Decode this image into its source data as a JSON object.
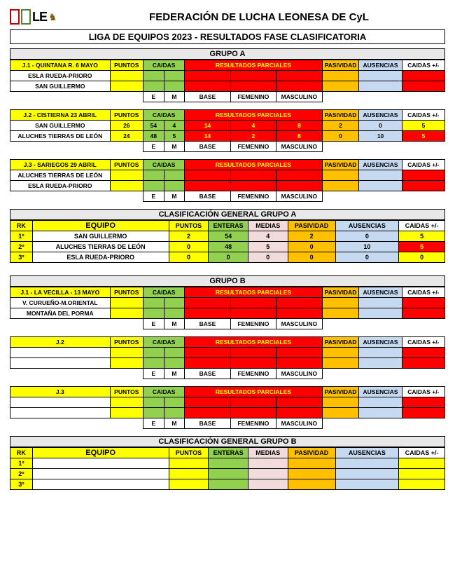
{
  "colors": {
    "yellow": "#ffff00",
    "green": "#92d050",
    "red": "#ff0000",
    "orange": "#ffc000",
    "blue": "#c5d9f1",
    "pink": "#f2dcdb",
    "grey": "#e8e8e8",
    "white": "#ffffff",
    "logo_red": "#c00000",
    "logo_green": "#548235",
    "logo_brown": "#7f6000"
  },
  "header_title": "FEDERACIÓN DE LUCHA LEONESA DE CyL",
  "subtitle": "LIGA DE EQUIPOS 2023 - RESULTADOS FASE CLASIFICATORIA",
  "labels": {
    "puntos": "PUNTOS",
    "caidas": "CAIDAS",
    "resultados": "RESULTADOS PARCIALES",
    "pasividad": "PASIVIDAD",
    "ausencias": "AUSENCIAS",
    "caidaspm": "CAIDAS +/-",
    "e": "E",
    "m": "M",
    "base": "BASE",
    "femenino": "FEMENINO",
    "masculino": "MASCULINO",
    "rk": "RK",
    "equipo": "EQUIPO",
    "enteras": "ENTERAS",
    "medias": "MEDIAS"
  },
  "groupA": {
    "title": "GRUPO A",
    "jornadas": [
      {
        "name": "J.1 - QUINTANA R. 6 MAYO",
        "rows": [
          {
            "team": "ESLA RUEDA-PRIORO",
            "puntos": "",
            "e": "",
            "m": "",
            "base": "",
            "fem": "",
            "mas": "",
            "pas": "",
            "aus": "",
            "cpm": ""
          },
          {
            "team": "SAN GUILLERMO",
            "puntos": "",
            "e": "",
            "m": "",
            "base": "",
            "fem": "",
            "mas": "",
            "pas": "",
            "aus": "",
            "cpm": ""
          }
        ]
      },
      {
        "name": "J.2 - CISTIERNA 23 ABRIL",
        "rows": [
          {
            "team": "SAN GUILLERMO",
            "puntos": "26",
            "e": "54",
            "m": "4",
            "base": "14",
            "fem": "4",
            "mas": "8",
            "pas": "2",
            "aus": "0",
            "cpm": "5",
            "cpm_bg": "yellow"
          },
          {
            "team": "ALUCHES TIERRAS DE LEÓN",
            "puntos": "24",
            "e": "48",
            "m": "5",
            "base": "14",
            "fem": "2",
            "mas": "8",
            "pas": "0",
            "aus": "10",
            "cpm": "5",
            "cpm_bg": "red"
          }
        ]
      },
      {
        "name": "J.3 - SARIEGOS 29 ABRIL",
        "rows": [
          {
            "team": "ALUCHES TIERRAS DE LEÓN",
            "puntos": "",
            "e": "",
            "m": "",
            "base": "",
            "fem": "",
            "mas": "",
            "pas": "",
            "aus": "",
            "cpm": ""
          },
          {
            "team": "ESLA RUEDA-PRIORO",
            "puntos": "",
            "e": "",
            "m": "",
            "base": "",
            "fem": "",
            "mas": "",
            "pas": "",
            "aus": "",
            "cpm": ""
          }
        ]
      }
    ],
    "clas_title": "CLASIFICACIÓN GENERAL GRUPO A",
    "clas": [
      {
        "rk": "1º",
        "equipo": "SAN GUILLERMO",
        "puntos": "2",
        "ent": "54",
        "med": "4",
        "pas": "2",
        "aus": "0",
        "cpm": "5",
        "cpm_bg": "yellow"
      },
      {
        "rk": "2º",
        "equipo": "ALUCHES TIERRAS DE LEÓN",
        "puntos": "0",
        "ent": "48",
        "med": "5",
        "pas": "0",
        "aus": "10",
        "cpm": "5",
        "cpm_bg": "red"
      },
      {
        "rk": "3º",
        "equipo": "ESLA RUEDA-PRIORO",
        "puntos": "0",
        "ent": "0",
        "med": "0",
        "pas": "0",
        "aus": "0",
        "cpm": "0",
        "cpm_bg": "yellow"
      }
    ]
  },
  "groupB": {
    "title": "GRUPO B",
    "jornadas": [
      {
        "name": "J.1 - LA VECILLA - 13 MAYO",
        "rows": [
          {
            "team": "V. CURUEÑO-M.ORIENTAL",
            "puntos": "",
            "e": "",
            "m": "",
            "base": "",
            "fem": "",
            "mas": "",
            "pas": "",
            "aus": "",
            "cpm": ""
          },
          {
            "team": "MONTAÑA DEL PORMA",
            "puntos": "",
            "e": "",
            "m": "",
            "base": "",
            "fem": "",
            "mas": "",
            "pas": "",
            "aus": "",
            "cpm": ""
          }
        ]
      },
      {
        "name": "J.2",
        "rows": [
          {
            "team": "",
            "puntos": "",
            "e": "",
            "m": "",
            "base": "",
            "fem": "",
            "mas": "",
            "pas": "",
            "aus": "",
            "cpm": ""
          },
          {
            "team": "",
            "puntos": "",
            "e": "",
            "m": "",
            "base": "",
            "fem": "",
            "mas": "",
            "pas": "",
            "aus": "",
            "cpm": ""
          }
        ]
      },
      {
        "name": "J.3",
        "rows": [
          {
            "team": "",
            "puntos": "",
            "e": "",
            "m": "",
            "base": "",
            "fem": "",
            "mas": "",
            "pas": "",
            "aus": "",
            "cpm": ""
          },
          {
            "team": "",
            "puntos": "",
            "e": "",
            "m": "",
            "base": "",
            "fem": "",
            "mas": "",
            "pas": "",
            "aus": "",
            "cpm": ""
          }
        ]
      }
    ],
    "clas_title": "CLASIFICACIÓN GENERAL GRUPO B",
    "clas": [
      {
        "rk": "1º",
        "equipo": "",
        "puntos": "",
        "ent": "",
        "med": "",
        "pas": "",
        "aus": "",
        "cpm": ""
      },
      {
        "rk": "2º",
        "equipo": "",
        "puntos": "",
        "ent": "",
        "med": "",
        "pas": "",
        "aus": "",
        "cpm": ""
      },
      {
        "rk": "3º",
        "equipo": "",
        "puntos": "",
        "ent": "",
        "med": "",
        "pas": "",
        "aus": "",
        "cpm": ""
      }
    ]
  },
  "col_widths": {
    "jornada": [
      135,
      45,
      28,
      28,
      62,
      62,
      62,
      50,
      58,
      58
    ],
    "clas": [
      28,
      172,
      50,
      50,
      50,
      60,
      80,
      58
    ]
  }
}
